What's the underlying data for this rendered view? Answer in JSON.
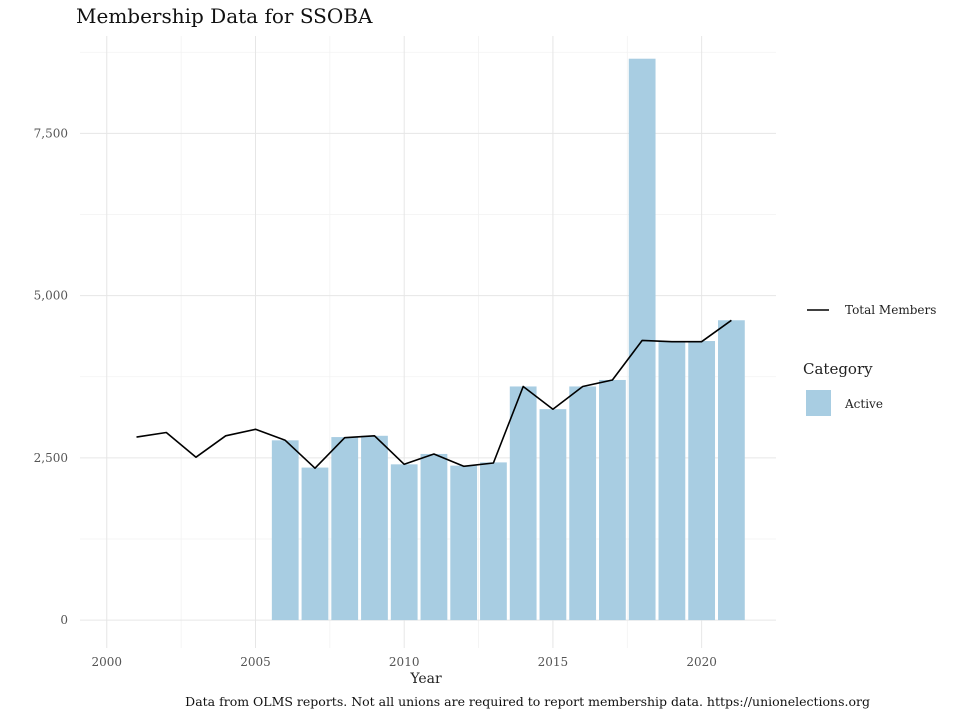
{
  "title": "Membership Data for SSOBA",
  "caption": "Data from OLMS reports. Not all unions are required to report membership data. https://unionelections.org",
  "chart_data": {
    "type": "bar",
    "title": "Membership Data for SSOBA",
    "xlabel": "Year",
    "ylabel": "",
    "xlim": [
      1999.1,
      2022.5
    ],
    "ylim": [
      -430,
      9000
    ],
    "x_ticks": [
      2000,
      2005,
      2010,
      2015,
      2020
    ],
    "x_tick_labels": [
      "2000",
      "2005",
      "2010",
      "2015",
      "2020"
    ],
    "y_ticks": [
      0,
      2500,
      5000,
      7500
    ],
    "y_tick_labels": [
      "0",
      "2,500",
      "5,000",
      "7,500"
    ],
    "grid": true,
    "legend_position": "right",
    "bar_series": {
      "name": "Active",
      "color": "#a8cde2",
      "x": [
        2006,
        2007,
        2008,
        2009,
        2010,
        2011,
        2012,
        2013,
        2014,
        2015,
        2016,
        2017,
        2018,
        2019,
        2020,
        2021
      ],
      "values": [
        2770,
        2350,
        2820,
        2840,
        2400,
        2560,
        2380,
        2430,
        3600,
        3250,
        3600,
        3700,
        8650,
        4300,
        4300,
        4620
      ]
    },
    "line_series": {
      "name": "Total Members",
      "color": "#000000",
      "x": [
        2001,
        2002,
        2003,
        2004,
        2005,
        2006,
        2007,
        2008,
        2009,
        2010,
        2011,
        2012,
        2013,
        2014,
        2015,
        2016,
        2017,
        2018,
        2019,
        2020,
        2021
      ],
      "values": [
        2820,
        2890,
        2510,
        2840,
        2940,
        2770,
        2340,
        2810,
        2840,
        2400,
        2560,
        2370,
        2420,
        3600,
        3250,
        3600,
        3700,
        4310,
        4290,
        4290,
        4620
      ]
    },
    "legend": {
      "line_label": "Total Members",
      "category_title": "Category",
      "category_items": [
        "Active"
      ]
    }
  }
}
